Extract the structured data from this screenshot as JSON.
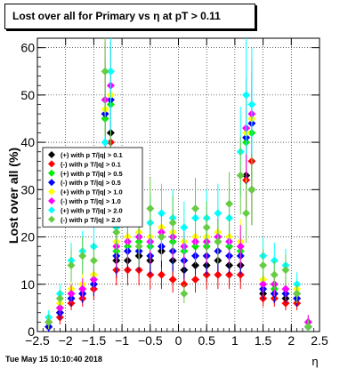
{
  "header": {
    "title": "Lost over all for Primary vs  η at pT > 0.11"
  },
  "footer": {
    "timestamp": "Tue May 15 10:10:40 2018"
  },
  "chart_data": {
    "type": "scatter",
    "title": "Lost over all for Primary vs  η at pT > 0.11",
    "xlabel": "η",
    "ylabel": "Lost over all (%)",
    "xlim": [
      -2.5,
      2.5
    ],
    "ylim": [
      0,
      62
    ],
    "xticks": [
      -2.5,
      -2,
      -1.5,
      -1,
      -0.5,
      0,
      0.5,
      1,
      1.5,
      2,
      2.5
    ],
    "xticklabels": [
      "−2.5",
      "−2",
      "−1.5",
      "−1",
      "−0.5",
      "0",
      "0.5",
      "1",
      "1.5",
      "2",
      "2.5"
    ],
    "yticks": [
      0,
      10,
      20,
      30,
      40,
      50,
      60
    ],
    "grid": true,
    "legend_position": "left-center",
    "series": [
      {
        "name": "(+) with p T/|q| > 0.1",
        "color": "#000000",
        "x": [
          -2.3,
          -2.1,
          -1.9,
          -1.7,
          -1.5,
          -1.3,
          -1.2,
          -1.1,
          -0.9,
          -0.7,
          -0.5,
          -0.3,
          -0.1,
          0.1,
          0.3,
          0.5,
          0.7,
          0.9,
          1.1,
          1.2,
          1.3,
          1.5,
          1.7,
          1.9,
          2.1,
          2.3
        ],
        "y": [
          1,
          4,
          7,
          8,
          10,
          38,
          42,
          15,
          15,
          16,
          15,
          17,
          15,
          13,
          14,
          14,
          15,
          14,
          14,
          33,
          30,
          8,
          8,
          7,
          7,
          1
        ]
      },
      {
        "name": "(-) with p T/|q| > 0.1",
        "color": "#ff0000",
        "x": [
          -2.3,
          -2.1,
          -1.9,
          -1.7,
          -1.5,
          -1.3,
          -1.2,
          -1.1,
          -0.9,
          -0.7,
          -0.5,
          -0.3,
          -0.1,
          0.1,
          0.3,
          0.5,
          0.7,
          0.9,
          1.1,
          1.2,
          1.3,
          1.5,
          1.7,
          1.9,
          2.1,
          2.3
        ],
        "y": [
          1,
          3,
          6,
          7,
          9,
          35,
          40,
          13,
          13,
          13,
          12,
          12,
          11,
          10,
          11,
          12,
          12,
          12,
          12,
          32,
          36,
          7,
          7,
          6,
          6,
          1
        ]
      },
      {
        "name": "(+) with p T/|q| > 0.5",
        "color": "#00ee00",
        "x": [
          -2.3,
          -2.1,
          -1.9,
          -1.7,
          -1.5,
          -1.3,
          -1.2,
          -1.1,
          -0.9,
          -0.7,
          -0.5,
          -0.3,
          -0.1,
          0.1,
          0.3,
          0.5,
          0.7,
          0.9,
          1.1,
          1.2,
          1.3,
          1.5,
          1.7,
          1.9,
          2.1,
          2.3
        ],
        "y": [
          2,
          5,
          8,
          9,
          11,
          45,
          48,
          17,
          18,
          19,
          18,
          20,
          19,
          17,
          18,
          18,
          19,
          18,
          17,
          40,
          42,
          10,
          9,
          8,
          8,
          2
        ]
      },
      {
        "name": "(-) with p T/|q| > 0.5",
        "color": "#0000ff",
        "x": [
          -2.3,
          -2.1,
          -1.9,
          -1.7,
          -1.5,
          -1.3,
          -1.2,
          -1.1,
          -0.9,
          -0.7,
          -0.5,
          -0.3,
          -0.1,
          0.1,
          0.3,
          0.5,
          0.7,
          0.9,
          1.1,
          1.2,
          1.3,
          1.5,
          1.7,
          1.9,
          2.1,
          2.3
        ],
        "y": [
          1,
          4,
          7,
          8,
          10,
          46,
          49,
          16,
          17,
          17,
          16,
          18,
          17,
          15,
          16,
          16,
          17,
          16,
          16,
          41,
          44,
          9,
          8,
          8,
          7,
          1
        ]
      },
      {
        "name": "(+) with p T/|q| > 1.0",
        "color": "#ffff00",
        "x": [
          -2.3,
          -2.1,
          -1.9,
          -1.7,
          -1.5,
          -1.3,
          -1.2,
          -1.1,
          -0.9,
          -0.7,
          -0.5,
          -0.3,
          -0.1,
          0.1,
          0.3,
          0.5,
          0.7,
          0.9,
          1.1,
          1.2,
          1.3,
          1.5,
          1.7,
          1.9,
          2.1,
          2.3
        ],
        "y": [
          2,
          6,
          9,
          10,
          12,
          47,
          50,
          19,
          20,
          21,
          20,
          22,
          21,
          19,
          20,
          20,
          21,
          20,
          19,
          42,
          45,
          11,
          10,
          9,
          9,
          2
        ]
      },
      {
        "name": "(-) with p T/|q| > 1.0",
        "color": "#ff00ff",
        "x": [
          -2.3,
          -2.1,
          -1.9,
          -1.7,
          -1.5,
          -1.3,
          -1.2,
          -1.1,
          -0.9,
          -0.7,
          -0.5,
          -0.3,
          -0.1,
          0.1,
          0.3,
          0.5,
          0.7,
          0.9,
          1.1,
          1.2,
          1.3,
          1.5,
          1.7,
          1.9,
          2.1,
          2.3
        ],
        "y": [
          2,
          5,
          8,
          9,
          11,
          49,
          52,
          18,
          19,
          20,
          19,
          21,
          20,
          18,
          19,
          19,
          20,
          19,
          18,
          43,
          46,
          10,
          10,
          9,
          8,
          2
        ]
      },
      {
        "name": "(+) with p T/|q| > 2.0",
        "color": "#00ffff",
        "x": [
          -2.3,
          -2.1,
          -1.9,
          -1.7,
          -1.5,
          -1.3,
          -1.2,
          -1.1,
          -0.9,
          -0.7,
          -0.5,
          -0.3,
          -0.1,
          0.1,
          0.3,
          0.5,
          0.7,
          0.9,
          1.1,
          1.2,
          1.3,
          1.5,
          1.7,
          1.9,
          2.1,
          2.3
        ],
        "y": [
          3,
          8,
          15,
          17,
          18,
          40,
          55,
          22,
          23,
          24,
          23,
          25,
          24,
          22,
          24,
          24,
          25,
          24,
          38,
          50,
          48,
          16,
          15,
          14,
          10,
          1
        ]
      },
      {
        "name": "(-) with p T/|q| > 2.0",
        "color": "#66cc44",
        "x": [
          -2.3,
          -2.1,
          -1.9,
          -1.7,
          -1.5,
          -1.3,
          -1.2,
          -1.1,
          -0.9,
          -0.7,
          -0.5,
          -0.3,
          -0.1,
          0.1,
          0.3,
          0.5,
          0.7,
          0.9,
          1.1,
          1.2,
          1.3,
          1.5,
          1.7,
          1.9,
          2.1,
          2.3
        ],
        "y": [
          2,
          7,
          14,
          16,
          15,
          55,
          34,
          21,
          24,
          18,
          26,
          20,
          23,
          8,
          26,
          22,
          19,
          27,
          33,
          25,
          30,
          14,
          12,
          13,
          8,
          1
        ]
      }
    ]
  }
}
